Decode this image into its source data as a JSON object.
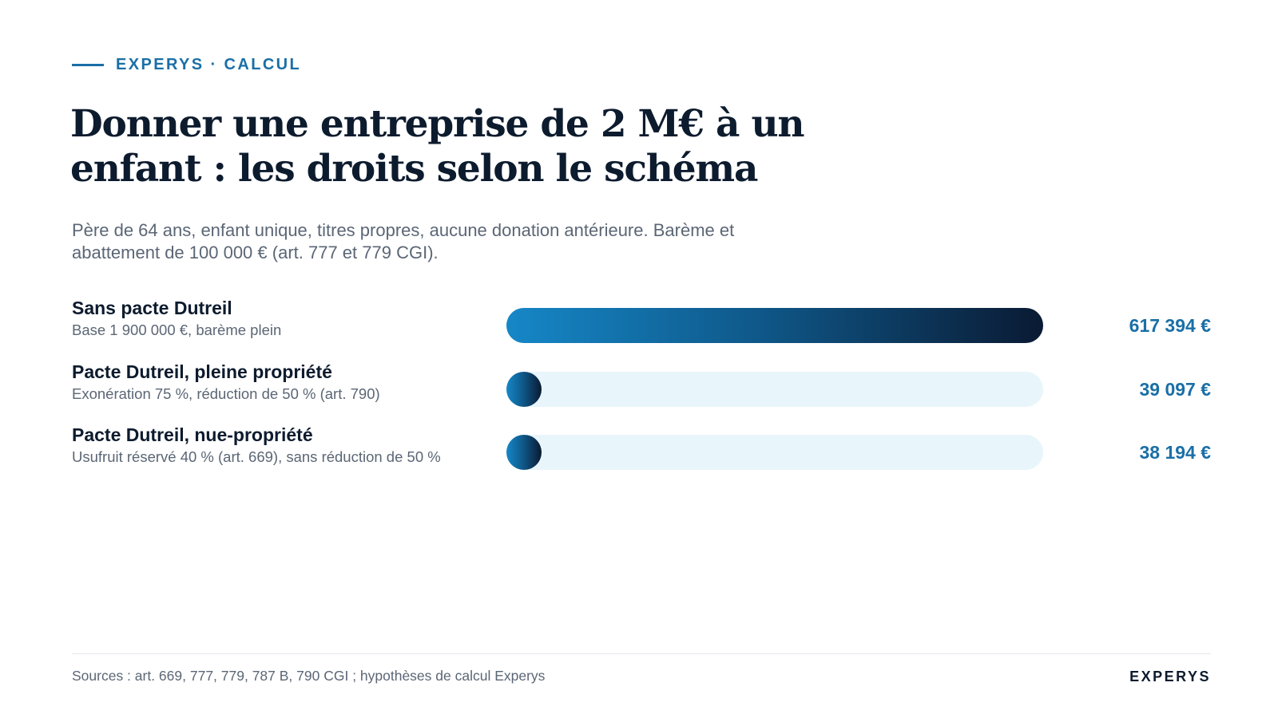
{
  "header": {
    "eyebrow": "EXPERYS · CALCUL",
    "title": "Donner une entreprise de 2 M€ à un enfant : les droits selon le schéma",
    "subtitle": "Père de 64 ans, enfant unique, titres propres, aucune donation antérieure. Barème et abattement de 100 000 € (art. 777 et 779 CGI)."
  },
  "colors": {
    "accent": "#1a6fa6",
    "bar_start": "#1687c7",
    "bar_end": "#0a1a33",
    "track": "#e8f5fb",
    "text_dark": "#0d1b2e",
    "text_muted": "#5b6675"
  },
  "chart_data": {
    "type": "bar",
    "orientation": "horizontal",
    "categories": [
      "Sans pacte Dutreil",
      "Pacte Dutreil, pleine propriété",
      "Pacte Dutreil, nue-propriété"
    ],
    "notes": [
      "Base 1 900 000 €, barème plein",
      "Exonération 75 %, réduction de 50 % (art. 790)",
      "Usufruit réservé 40 % (art. 669), sans réduction de 50 %"
    ],
    "values": [
      617394,
      39097,
      38194
    ],
    "value_labels": [
      "617 394 €",
      "39 097 €",
      "38 194 €"
    ],
    "xlim": [
      0,
      617394
    ],
    "grid": false,
    "legend": "none"
  },
  "footer": {
    "sources": "Sources : art. 669, 777, 779, 787 B, 790 CGI ; hypothèses de calcul Experys",
    "brand": "EXPERYS"
  }
}
